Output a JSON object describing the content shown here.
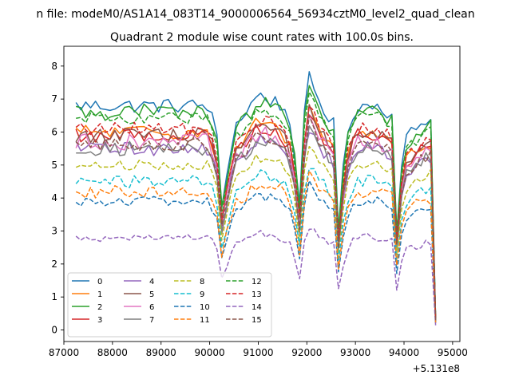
{
  "chart_data": {
    "type": "line",
    "suptitle": "n file: modeM0/AS1A14_083T14_9000006564_56934cztM0_level2_quad_clean",
    "title": "Quadrant 2 module wise count rates with 100.0s bins.",
    "xlabel": "",
    "ylabel": "",
    "x_offset_label": "+5.131e8",
    "xlim": [
      87000,
      95150
    ],
    "ylim": [
      -0.35,
      8.6
    ],
    "xticks": [
      87000,
      88000,
      89000,
      90000,
      91000,
      92000,
      93000,
      94000,
      95000
    ],
    "xtick_labels": [
      "87000",
      "88000",
      "89000",
      "90000",
      "91000",
      "92000",
      "93000",
      "94000",
      "95000"
    ],
    "yticks": [
      0,
      1,
      2,
      3,
      4,
      5,
      6,
      7,
      8
    ],
    "ytick_labels": [
      "0",
      "1",
      "2",
      "3",
      "4",
      "5",
      "6",
      "7",
      "8"
    ],
    "x_start": 87250,
    "x_step": 100,
    "legend_position": "lower-left",
    "legend_columns": 4,
    "series": [
      {
        "name": "0",
        "color": "#1f77b4",
        "dash": "solid",
        "base": 6.8,
        "noise": 0.22,
        "dip_depth": 0.45
      },
      {
        "name": "1",
        "color": "#ff7f0e",
        "dash": "solid",
        "base": 6.0,
        "noise": 0.22,
        "dip_depth": 0.45
      },
      {
        "name": "2",
        "color": "#2ca02c",
        "dash": "solid",
        "base": 6.6,
        "noise": 0.25,
        "dip_depth": 0.5
      },
      {
        "name": "3",
        "color": "#d62728",
        "dash": "solid",
        "base": 5.9,
        "noise": 0.22,
        "dip_depth": 0.42
      },
      {
        "name": "4",
        "color": "#9467bd",
        "dash": "solid",
        "base": 5.5,
        "noise": 0.22,
        "dip_depth": 0.45
      },
      {
        "name": "5",
        "color": "#8c564b",
        "dash": "solid",
        "base": 5.9,
        "noise": 0.22,
        "dip_depth": 0.45
      },
      {
        "name": "6",
        "color": "#e377c2",
        "dash": "solid",
        "base": 5.7,
        "noise": 0.25,
        "dip_depth": 0.45
      },
      {
        "name": "7",
        "color": "#7f7f7f",
        "dash": "solid",
        "base": 5.5,
        "noise": 0.22,
        "dip_depth": 0.45
      },
      {
        "name": "8",
        "color": "#bcbd22",
        "dash": "dashed",
        "base": 5.0,
        "noise": 0.15,
        "dip_depth": 0.45
      },
      {
        "name": "9",
        "color": "#17becf",
        "dash": "dashed",
        "base": 4.5,
        "noise": 0.2,
        "dip_depth": 0.45
      },
      {
        "name": "10",
        "color": "#1f77b4",
        "dash": "dashed",
        "base": 3.9,
        "noise": 0.15,
        "dip_depth": 0.42
      },
      {
        "name": "11",
        "color": "#ff7f0e",
        "dash": "dashed",
        "base": 4.2,
        "noise": 0.2,
        "dip_depth": 0.45
      },
      {
        "name": "12",
        "color": "#2ca02c",
        "dash": "dashed",
        "base": 6.4,
        "noise": 0.2,
        "dip_depth": 0.5
      },
      {
        "name": "13",
        "color": "#d62728",
        "dash": "dashed",
        "base": 6.1,
        "noise": 0.2,
        "dip_depth": 0.45
      },
      {
        "name": "14",
        "color": "#9467bd",
        "dash": "dashed",
        "base": 2.8,
        "noise": 0.12,
        "dip_depth": 0.3
      },
      {
        "name": "15",
        "color": "#8c564b",
        "dash": "dashed",
        "base": 5.6,
        "noise": 0.2,
        "dip_depth": 0.45
      }
    ],
    "envelope": {
      "x": [
        87250,
        89000,
        90000,
        90150,
        90250,
        90500,
        91000,
        91500,
        91700,
        91850,
        92000,
        92300,
        92600,
        92650,
        92800,
        93000,
        93500,
        93800,
        93850,
        94000,
        94500,
        94600,
        94650
      ],
      "factor": [
        1.0,
        1.0,
        1.0,
        0.85,
        0.55,
        0.9,
        1.05,
        1.0,
        0.9,
        0.55,
        1.15,
        1.0,
        0.9,
        0.45,
        0.85,
        1.0,
        1.0,
        0.95,
        0.45,
        0.85,
        0.95,
        0.95,
        0.05
      ]
    }
  }
}
